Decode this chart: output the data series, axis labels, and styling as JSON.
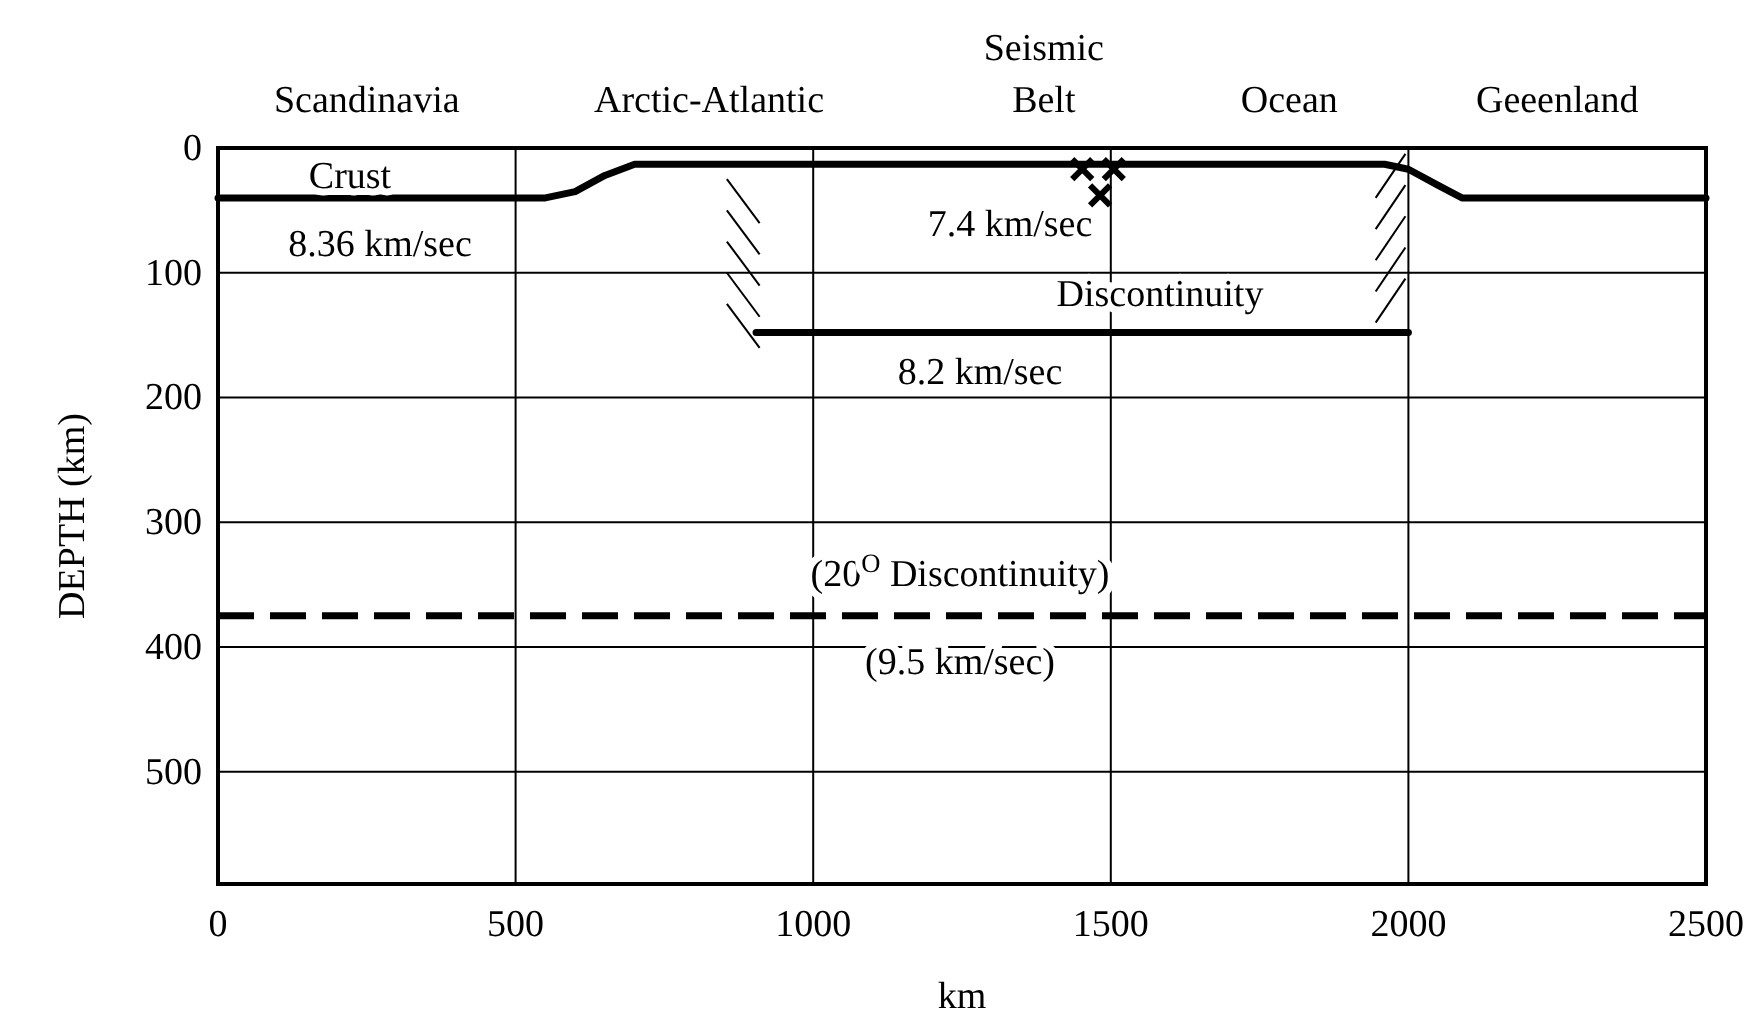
{
  "chart_data": {
    "type": "line",
    "xlabel": "km",
    "ylabel": "DEPTH (km)",
    "xlim": [
      0,
      2500
    ],
    "xticks": [
      0,
      500,
      1000,
      1500,
      2000,
      2500
    ],
    "ylim": [
      590,
      0
    ],
    "yticks": [
      0,
      100,
      200,
      300,
      400,
      500
    ],
    "grid": true,
    "series": [
      {
        "color": "#000000",
        "marker": "none",
        "line_style": "solid",
        "x": [
          0,
          550,
          600,
          650,
          700,
          1960,
          2000,
          2050,
          2090,
          2500
        ],
        "values": [
          40,
          40,
          35,
          22,
          13,
          13,
          17,
          30,
          40,
          40
        ]
      },
      {
        "color": "#000000",
        "marker": "none",
        "line_style": "solid",
        "x": [
          904,
          2000
        ],
        "values": [
          148,
          148
        ]
      },
      {
        "type": "scatter",
        "color": "#000000",
        "marker": "cross",
        "x": [
          1452,
          1505,
          1482
        ],
        "values": [
          17,
          17,
          38
        ]
      }
    ],
    "ref_lines": [
      {
        "axis": "y",
        "value": 375,
        "color": "#000000",
        "line_style": "dashed"
      }
    ],
    "annotations": [
      "Scandinavia",
      "Arctic-Atlantic",
      "Seismic Belt",
      "Ocean",
      "Geeenland",
      "Crust",
      "8.36 km/sec",
      "7.4 km/sec",
      "Discontinuity",
      "8.2 km/sec",
      "(20$^{O}$ Discontinuity)",
      "(9.5 km/sec)"
    ]
  }
}
